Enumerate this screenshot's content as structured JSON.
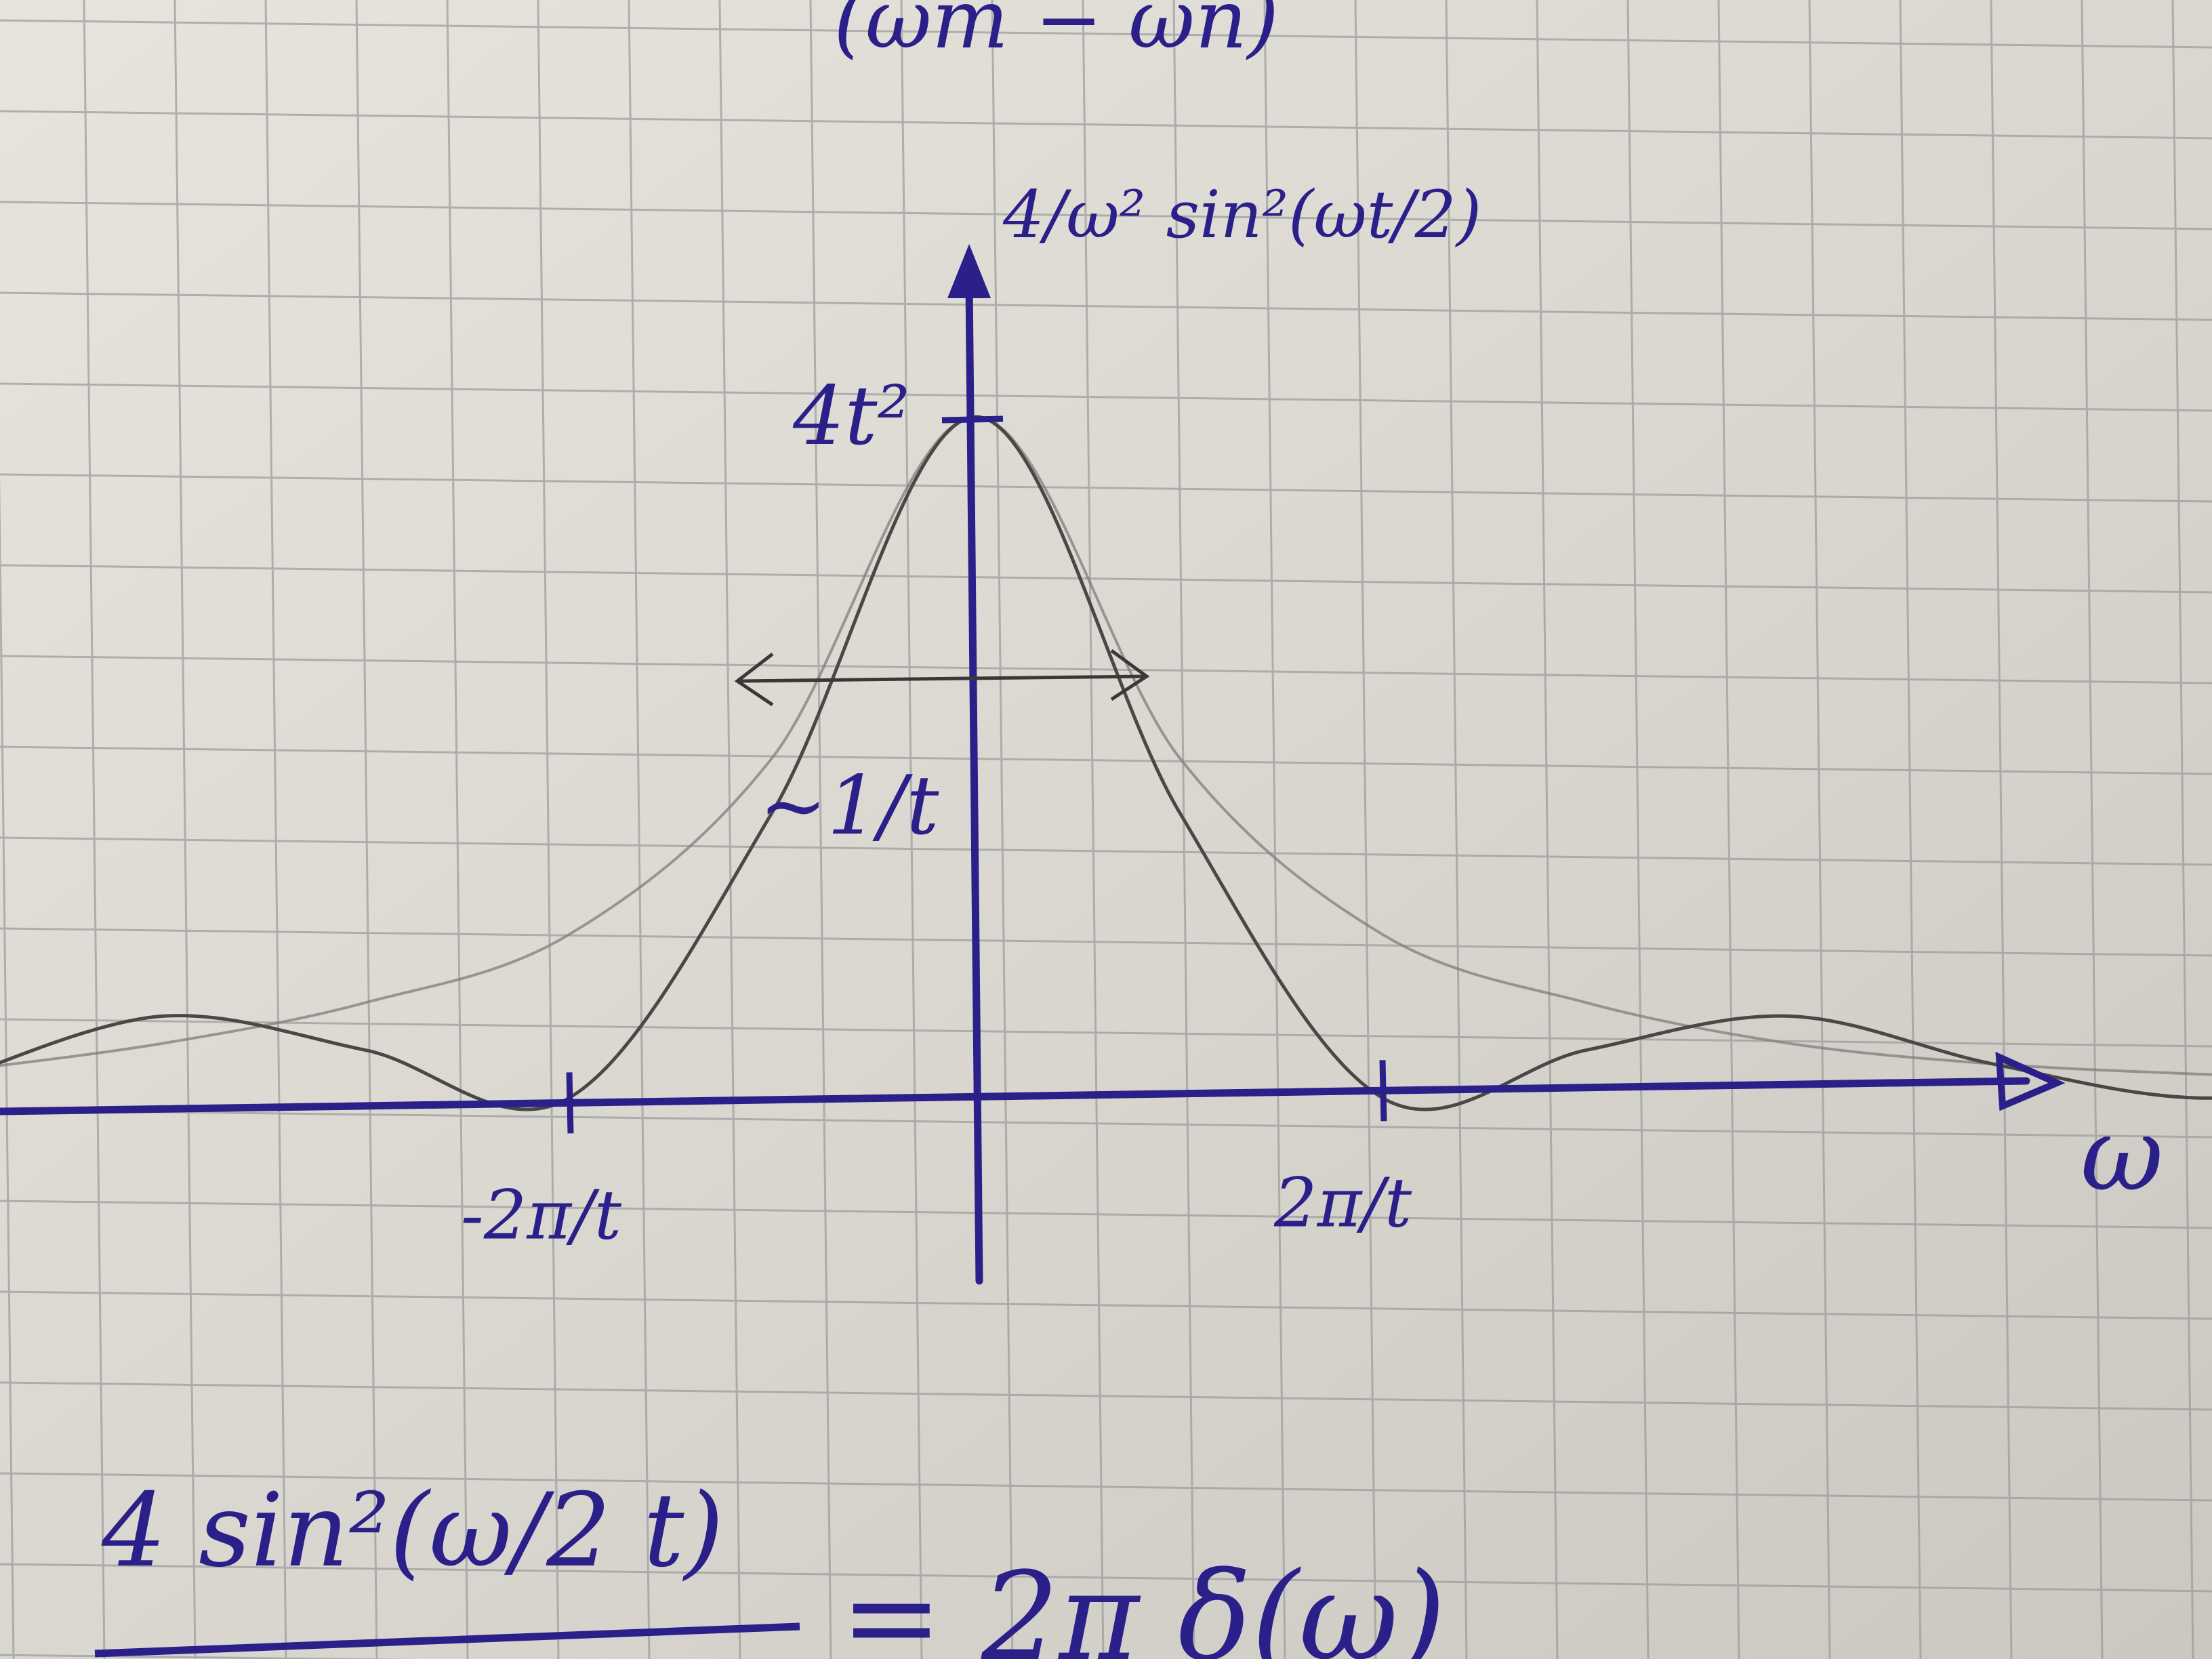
{
  "chart_data": {
    "type": "line",
    "function_label": "4/ω² sin²(ωt/2)",
    "xlabel": "ω",
    "peak_label": "4t²",
    "width_label": "~1/t",
    "tick_labels": [
      "-2π/t",
      "2π/t"
    ],
    "x_range": [
      -2.55,
      4.6
    ],
    "series": [
      {
        "role": "curve",
        "x": [
          -2.5,
          -2.0,
          -1.5,
          -1.0,
          -0.5,
          0.0,
          0.5,
          1.0,
          1.5,
          2.0,
          2.5,
          3.0,
          3.5,
          4.0,
          4.5
        ],
        "y": [
          0.03,
          0.12,
          0.07,
          0.0,
          0.42,
          1.0,
          0.42,
          0.0,
          0.07,
          0.12,
          0.05,
          0.0,
          0.03,
          0.05,
          0.03
        ]
      },
      {
        "role": "envelope",
        "x": [
          -2.5,
          -2.0,
          -1.5,
          -1.0,
          -0.5,
          0.0,
          0.5,
          1.0,
          1.5,
          2.0,
          2.5,
          3.0,
          3.5,
          4.0,
          4.5
        ],
        "y": [
          0.04,
          0.08,
          0.14,
          0.24,
          0.5,
          1.0,
          0.5,
          0.24,
          0.14,
          0.08,
          0.05,
          0.035,
          0.025,
          0.02,
          0.016
        ]
      }
    ],
    "grid": true,
    "envelope_style": "faint pencil"
  },
  "top_text": "(ωm − ωn)",
  "equation": {
    "numerator": "4 sin²(ω/2 t)",
    "rhs": "= 2π δ(ω)"
  }
}
